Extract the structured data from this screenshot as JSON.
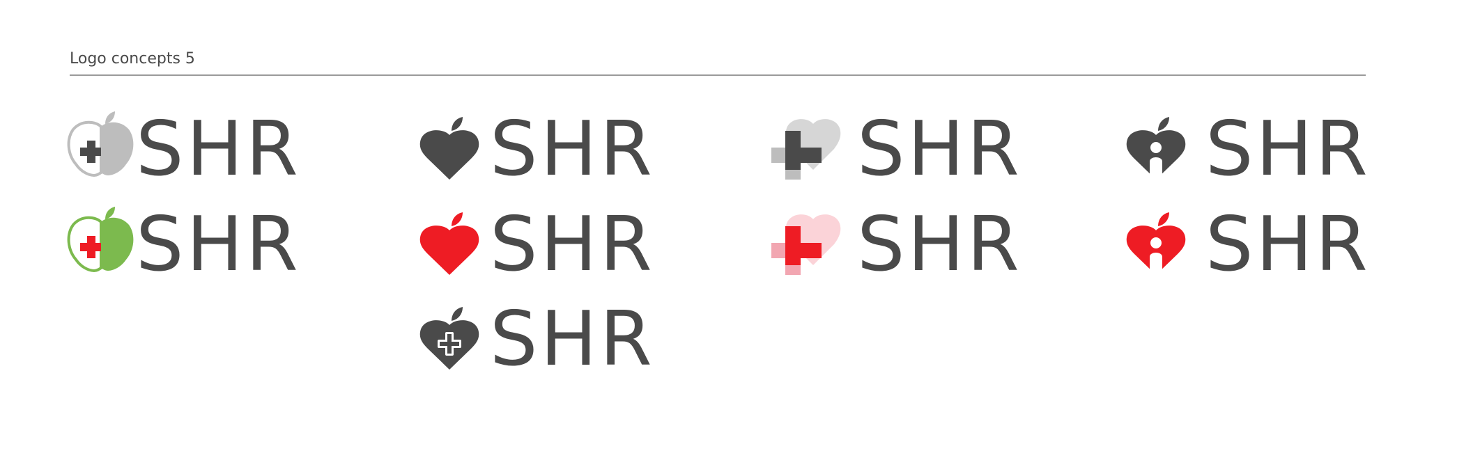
{
  "header": {
    "title": "Logo concepts 5"
  },
  "wordmark": "SHR",
  "colors": {
    "dark": "#4a4a4a",
    "light_gray": "#bdbdbd",
    "pale_gray": "#d6d6d6",
    "green": "#7cba4e",
    "red": "#ee1c24",
    "pink": "#fbd3d8",
    "mid_pink": "#f2a6b1"
  },
  "concepts": [
    {
      "id": "apple-cross-gray",
      "wordmark": "SHR",
      "icon": "apple-outline-cross-icon"
    },
    {
      "id": "apple-cross-green",
      "wordmark": "SHR",
      "icon": "apple-outline-cross-icon"
    },
    {
      "id": "heart-apple-dark",
      "wordmark": "SHR",
      "icon": "heart-apple-icon"
    },
    {
      "id": "heart-apple-red",
      "wordmark": "SHR",
      "icon": "heart-apple-icon"
    },
    {
      "id": "heart-apple-plus-dark",
      "wordmark": "SHR",
      "icon": "heart-apple-plus-icon"
    },
    {
      "id": "heart-cross-gray",
      "wordmark": "SHR",
      "icon": "heart-cross-overlay-icon"
    },
    {
      "id": "heart-cross-red",
      "wordmark": "SHR",
      "icon": "heart-cross-overlay-icon"
    },
    {
      "id": "heart-person-dark",
      "wordmark": "SHR",
      "icon": "heart-apple-person-icon"
    },
    {
      "id": "heart-person-red",
      "wordmark": "SHR",
      "icon": "heart-apple-person-icon"
    }
  ]
}
